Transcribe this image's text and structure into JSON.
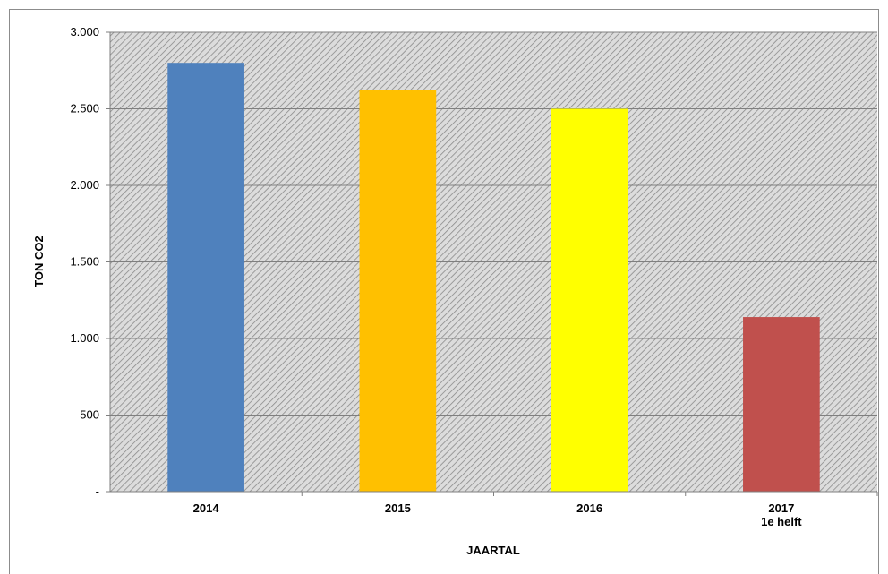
{
  "colors": {
    "plot_background": "#dcdcdc",
    "hatch": "#8a8a8a",
    "gridline": "#7f7f7f",
    "bar_2014": "#4f81bd",
    "bar_2015": "#ffc000",
    "bar_2016": "#ffff00",
    "bar_2017": "#c0504d"
  },
  "chart_data": {
    "type": "bar",
    "title": "",
    "xlabel": "JAARTAL",
    "ylabel": "TON CO2",
    "categories": [
      [
        "2014"
      ],
      [
        "2015"
      ],
      [
        "2016"
      ],
      [
        "2017",
        "1e helft"
      ]
    ],
    "values": [
      2800,
      2625,
      2500,
      1140
    ],
    "bar_colors": [
      "#4f81bd",
      "#ffc000",
      "#ffff00",
      "#c0504d"
    ],
    "ylim": [
      0,
      3000
    ],
    "yticks": [
      0,
      500,
      1000,
      1500,
      2000,
      2500,
      3000
    ],
    "ytick_labels": [
      "-",
      "500",
      "1.000",
      "1.500",
      "2.000",
      "2.500",
      "3.000"
    ],
    "grid": true,
    "hatched_background": true,
    "legend": "none"
  }
}
